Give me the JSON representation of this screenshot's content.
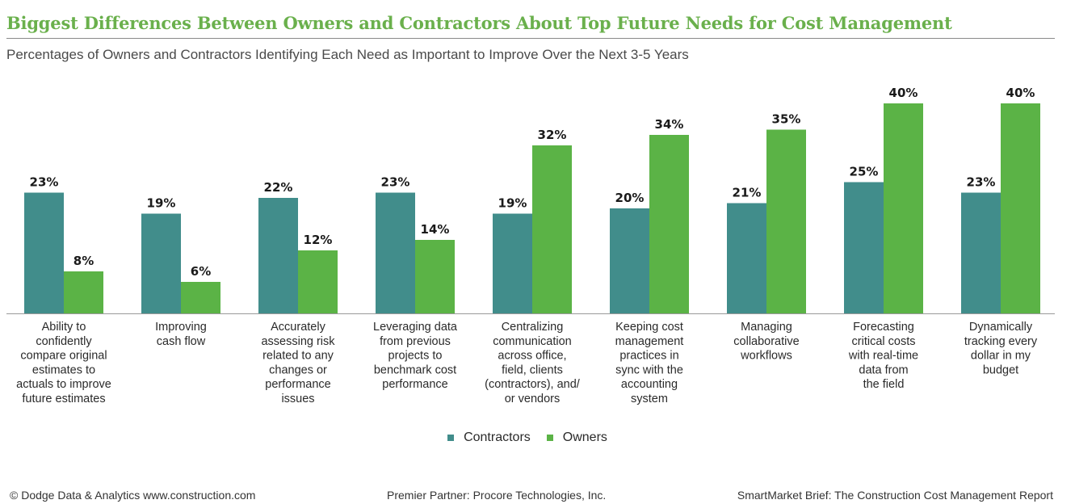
{
  "header": {
    "title": "Biggest Differences Between Owners and Contractors About Top Future Needs for Cost Management",
    "subtitle": "Percentages of Owners and Contractors Identifying Each Need as Important to Improve Over the Next 3-5 Years",
    "title_color": "#6ab04c"
  },
  "chart_data": {
    "type": "bar",
    "title": "Biggest Differences Between Owners and Contractors About Top Future Needs for Cost Management",
    "subtitle": "Percentages of Owners and Contractors Identifying Each Need as Important to Improve Over the Next 3-5 Years",
    "categories": [
      [
        "Ability to",
        "confidently",
        "compare original",
        "estimates to",
        "actuals to improve",
        "future estimates"
      ],
      [
        "Improving",
        "cash flow"
      ],
      [
        "Accurately",
        "assessing risk",
        "related to any",
        "changes or",
        "performance",
        "issues"
      ],
      [
        "Leveraging data",
        "from previous",
        "projects to",
        "benchmark cost",
        "performance"
      ],
      [
        "Centralizing",
        "communication",
        "across office,",
        "field, clients",
        "(contractors), and/",
        "or vendors"
      ],
      [
        "Keeping cost",
        "management",
        "practices in",
        "sync with the",
        "accounting",
        "system"
      ],
      [
        "Managing",
        "collaborative",
        "workflows"
      ],
      [
        "Forecasting",
        "critical costs",
        "with real-time",
        "data from",
        "the field"
      ],
      [
        "Dynamically",
        "tracking every",
        "dollar in my",
        "budget"
      ]
    ],
    "series": [
      {
        "name": "Contractors",
        "color": "#418d8b",
        "values": [
          23,
          19,
          22,
          23,
          19,
          20,
          21,
          25,
          23
        ],
        "labels": [
          "23%",
          "19%",
          "22%",
          "23%",
          "19%",
          "20%",
          "21%",
          "25%",
          "23%"
        ]
      },
      {
        "name": "Owners",
        "color": "#5bb346",
        "values": [
          8,
          6,
          12,
          14,
          32,
          34,
          35,
          40,
          40
        ],
        "labels": [
          "8%",
          "6%",
          "12%",
          "14%",
          "32%",
          "34%",
          "35%",
          "40%",
          "40%"
        ]
      }
    ],
    "ylim": [
      0,
      40
    ],
    "grid": false,
    "legend_position": "bottom-center",
    "axis_color": "#9a9a9a"
  },
  "footer": {
    "left": "© Dodge Data & Analytics  www.construction.com",
    "center": "Premier Partner: Procore Technologies, Inc.",
    "right": "SmartMarket Brief: The Construction Cost Management Report"
  }
}
